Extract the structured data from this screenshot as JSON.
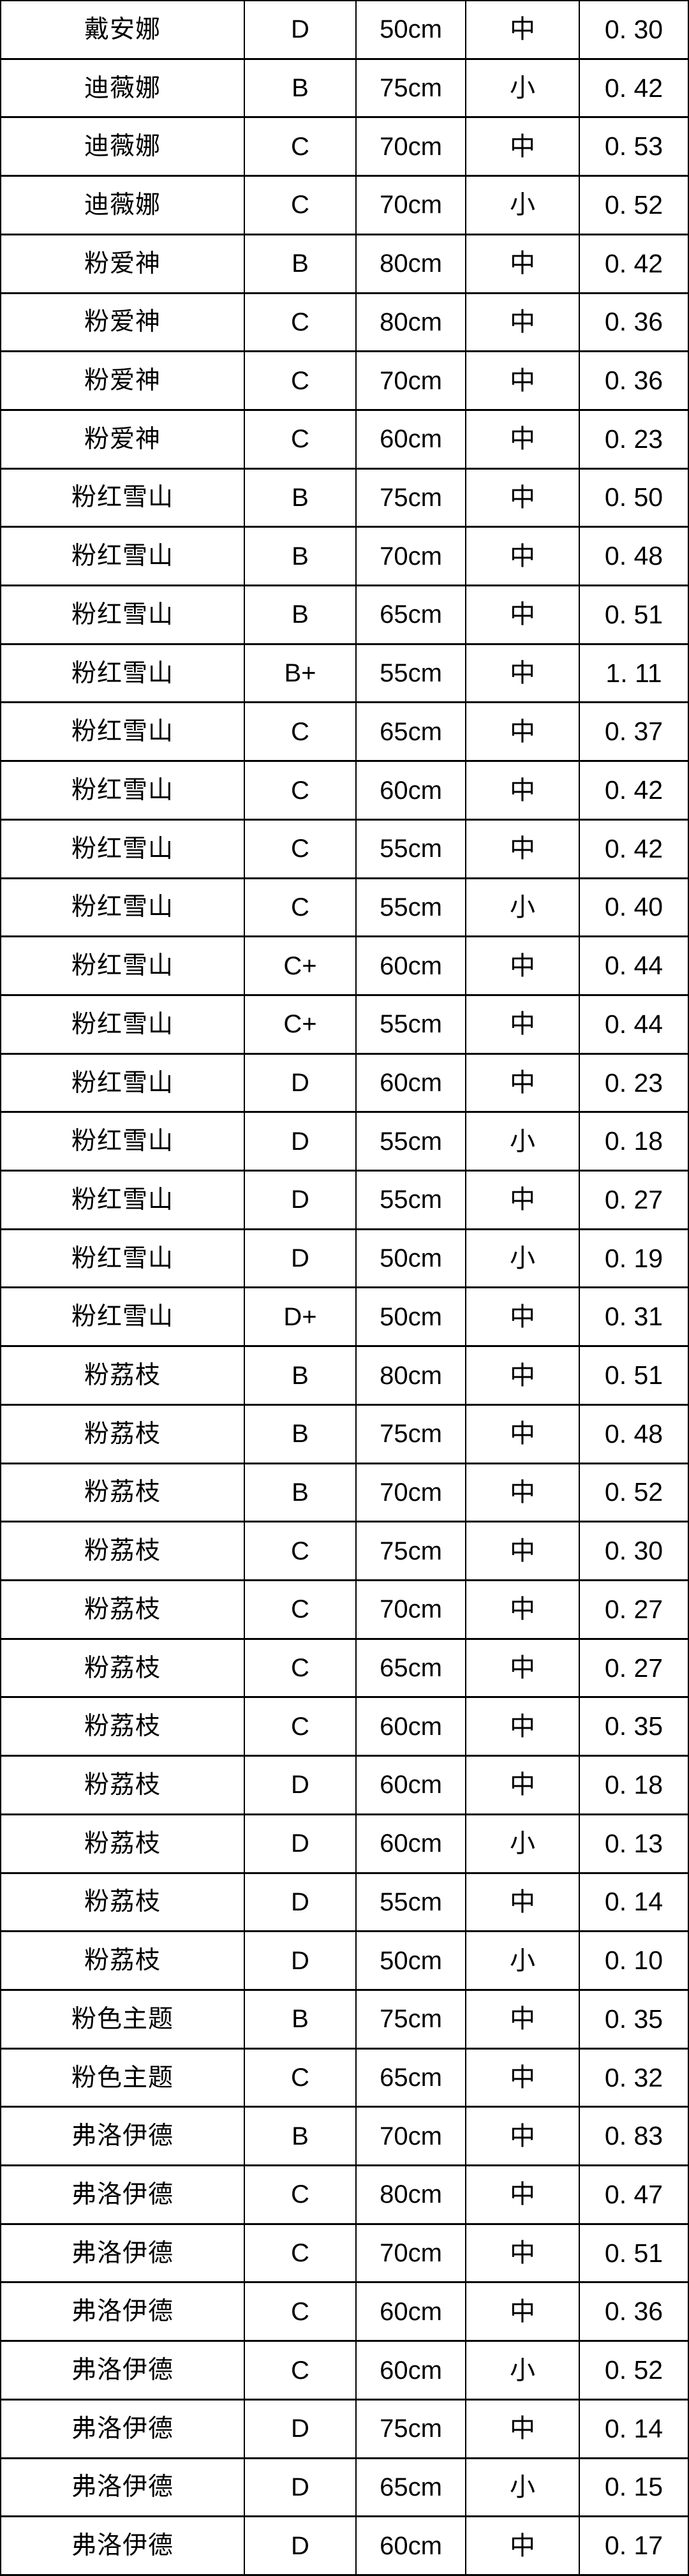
{
  "table": {
    "line_color": "#000000",
    "background_color": "#ffffff",
    "text_color": "#000000",
    "columns_semantic": [
      "name",
      "grade",
      "stem-length",
      "head-size",
      "ratio"
    ],
    "rows": [
      [
        "戴安娜",
        "D",
        "50cm",
        "中",
        "0. 30"
      ],
      [
        "迪薇娜",
        "B",
        "75cm",
        "小",
        "0. 42"
      ],
      [
        "迪薇娜",
        "C",
        "70cm",
        "中",
        "0. 53"
      ],
      [
        "迪薇娜",
        "C",
        "70cm",
        "小",
        "0. 52"
      ],
      [
        "粉爱神",
        "B",
        "80cm",
        "中",
        "0. 42"
      ],
      [
        "粉爱神",
        "C",
        "80cm",
        "中",
        "0. 36"
      ],
      [
        "粉爱神",
        "C",
        "70cm",
        "中",
        "0. 36"
      ],
      [
        "粉爱神",
        "C",
        "60cm",
        "中",
        "0. 23"
      ],
      [
        "粉红雪山",
        "B",
        "75cm",
        "中",
        "0. 50"
      ],
      [
        "粉红雪山",
        "B",
        "70cm",
        "中",
        "0. 48"
      ],
      [
        "粉红雪山",
        "B",
        "65cm",
        "中",
        "0. 51"
      ],
      [
        "粉红雪山",
        "B+",
        "55cm",
        "中",
        "1. 11"
      ],
      [
        "粉红雪山",
        "C",
        "65cm",
        "中",
        "0. 37"
      ],
      [
        "粉红雪山",
        "C",
        "60cm",
        "中",
        "0. 42"
      ],
      [
        "粉红雪山",
        "C",
        "55cm",
        "中",
        "0. 42"
      ],
      [
        "粉红雪山",
        "C",
        "55cm",
        "小",
        "0. 40"
      ],
      [
        "粉红雪山",
        "C+",
        "60cm",
        "中",
        "0. 44"
      ],
      [
        "粉红雪山",
        "C+",
        "55cm",
        "中",
        "0. 44"
      ],
      [
        "粉红雪山",
        "D",
        "60cm",
        "中",
        "0. 23"
      ],
      [
        "粉红雪山",
        "D",
        "55cm",
        "小",
        "0. 18"
      ],
      [
        "粉红雪山",
        "D",
        "55cm",
        "中",
        "0. 27"
      ],
      [
        "粉红雪山",
        "D",
        "50cm",
        "小",
        "0. 19"
      ],
      [
        "粉红雪山",
        "D+",
        "50cm",
        "中",
        "0. 31"
      ],
      [
        "粉荔枝",
        "B",
        "80cm",
        "中",
        "0. 51"
      ],
      [
        "粉荔枝",
        "B",
        "75cm",
        "中",
        "0. 48"
      ],
      [
        "粉荔枝",
        "B",
        "70cm",
        "中",
        "0. 52"
      ],
      [
        "粉荔枝",
        "C",
        "75cm",
        "中",
        "0. 30"
      ],
      [
        "粉荔枝",
        "C",
        "70cm",
        "中",
        "0. 27"
      ],
      [
        "粉荔枝",
        "C",
        "65cm",
        "中",
        "0. 27"
      ],
      [
        "粉荔枝",
        "C",
        "60cm",
        "中",
        "0. 35"
      ],
      [
        "粉荔枝",
        "D",
        "60cm",
        "中",
        "0. 18"
      ],
      [
        "粉荔枝",
        "D",
        "60cm",
        "小",
        "0. 13"
      ],
      [
        "粉荔枝",
        "D",
        "55cm",
        "中",
        "0. 14"
      ],
      [
        "粉荔枝",
        "D",
        "50cm",
        "小",
        "0. 10"
      ],
      [
        "粉色主题",
        "B",
        "75cm",
        "中",
        "0. 35"
      ],
      [
        "粉色主题",
        "C",
        "65cm",
        "中",
        "0. 32"
      ],
      [
        "弗洛伊德",
        "B",
        "70cm",
        "中",
        "0. 83"
      ],
      [
        "弗洛伊德",
        "C",
        "80cm",
        "中",
        "0. 47"
      ],
      [
        "弗洛伊德",
        "C",
        "70cm",
        "中",
        "0. 51"
      ],
      [
        "弗洛伊德",
        "C",
        "60cm",
        "中",
        "0. 36"
      ],
      [
        "弗洛伊德",
        "C",
        "60cm",
        "小",
        "0. 52"
      ],
      [
        "弗洛伊德",
        "D",
        "75cm",
        "中",
        "0. 14"
      ],
      [
        "弗洛伊德",
        "D",
        "65cm",
        "小",
        "0. 15"
      ],
      [
        "弗洛伊德",
        "D",
        "60cm",
        "中",
        "0. 17"
      ]
    ]
  }
}
